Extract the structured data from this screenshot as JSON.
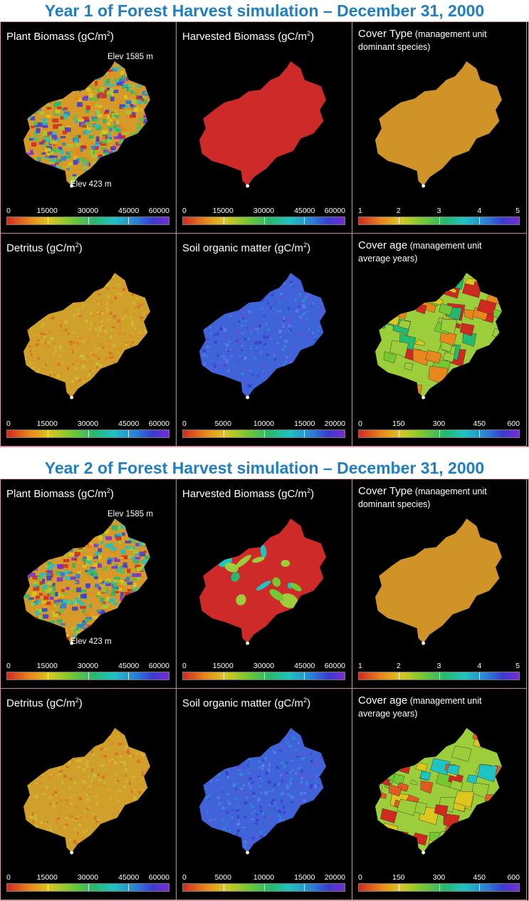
{
  "sections": [
    {
      "title": "Year 1 of Forest Harvest simulation – December 31, 2000",
      "panels": [
        {
          "title": "Plant Biomass (gC/m",
          "unit_exp": "2",
          "title_end": ")",
          "subtitle": "",
          "subtitle2": "",
          "elev_high": "Elev 1585 m",
          "elev_low": "Elev 423 m",
          "ticks": [
            "0",
            "15000",
            "30000",
            "45000",
            "60000"
          ],
          "map_style": "mixed",
          "map_color": "#d59a2a"
        },
        {
          "title": "Harvested Biomass (gC/m",
          "unit_exp": "2",
          "title_end": ")",
          "subtitle": "",
          "subtitle2": "",
          "elev_high": "",
          "elev_low": "",
          "ticks": [
            "0",
            "15000",
            "30000",
            "45000",
            "60000"
          ],
          "map_style": "solid",
          "map_color": "#cf2a2a"
        },
        {
          "title": "Cover Type",
          "unit_exp": "",
          "title_end": "",
          "subtitle": " (management unit",
          "subtitle2": "dominant species)",
          "elev_high": "",
          "elev_low": "",
          "ticks": [
            "1",
            "2",
            "3",
            "4",
            "5"
          ],
          "map_style": "solid",
          "map_color": "#cf9328"
        },
        {
          "title": "Detritus (gC/m",
          "unit_exp": "2",
          "title_end": ")",
          "subtitle": "",
          "subtitle2": "",
          "elev_high": "",
          "elev_low": "",
          "ticks": [
            "0",
            "15000",
            "30000",
            "45000",
            "60000"
          ],
          "map_style": "speckle",
          "map_color": "#cfa02a"
        },
        {
          "title": "Soil organic matter (gC/m",
          "unit_exp": "2",
          "title_end": ")",
          "subtitle": "",
          "subtitle2": "",
          "elev_high": "",
          "elev_low": "",
          "ticks": [
            "0",
            "5000",
            "10000",
            "15000",
            "20000"
          ],
          "map_style": "speckle",
          "map_color": "#3f63d8"
        },
        {
          "title": "Cover age",
          "unit_exp": "",
          "title_end": "",
          "subtitle": " (management unit",
          "subtitle2": "average years)",
          "elev_high": "",
          "elev_low": "",
          "ticks": [
            "0",
            "150",
            "300",
            "450",
            "600"
          ],
          "map_style": "patch",
          "map_color": "#9ccd3a"
        }
      ]
    },
    {
      "title": "Year 2 of Forest Harvest simulation – December 31, 2000",
      "panels": [
        {
          "title": "Plant Biomass (gC/m",
          "unit_exp": "2",
          "title_end": ")",
          "subtitle": "",
          "subtitle2": "",
          "elev_high": "Elev 1585 m",
          "elev_low": "Elev 423 m",
          "ticks": [
            "0",
            "15000",
            "30000",
            "45000",
            "60000"
          ],
          "map_style": "mixed",
          "map_color": "#d59a2a"
        },
        {
          "title": "Harvested Biomass (gC/m",
          "unit_exp": "2",
          "title_end": ")",
          "subtitle": "",
          "subtitle2": "",
          "elev_high": "",
          "elev_low": "",
          "ticks": [
            "0",
            "15000",
            "30000",
            "45000",
            "60000"
          ],
          "map_style": "harvest",
          "map_color": "#cf2a2a"
        },
        {
          "title": "Cover Type",
          "unit_exp": "",
          "title_end": "",
          "subtitle": " (management unit",
          "subtitle2": "dominant species)",
          "elev_high": "",
          "elev_low": "",
          "ticks": [
            "1",
            "2",
            "3",
            "4",
            "5"
          ],
          "map_style": "solid",
          "map_color": "#cf9328"
        },
        {
          "title": "Detritus (gC/m",
          "unit_exp": "2",
          "title_end": ")",
          "subtitle": "",
          "subtitle2": "",
          "elev_high": "",
          "elev_low": "",
          "ticks": [
            "0",
            "15000",
            "30000",
            "45000",
            "60000"
          ],
          "map_style": "speckle",
          "map_color": "#cfa02a"
        },
        {
          "title": "Soil organic matter (gC/m",
          "unit_exp": "2",
          "title_end": ")",
          "subtitle": "",
          "subtitle2": "",
          "elev_high": "",
          "elev_low": "",
          "ticks": [
            "0",
            "5000",
            "10000",
            "15000",
            "20000"
          ],
          "map_style": "speckle",
          "map_color": "#3f63d8"
        },
        {
          "title": "Cover age",
          "unit_exp": "",
          "title_end": "",
          "subtitle": " (management unit",
          "subtitle2": "average years)",
          "elev_high": "",
          "elev_low": "",
          "ticks": [
            "0",
            "150",
            "300",
            "450",
            "600"
          ],
          "map_style": "patch2",
          "map_color": "#9ccd3a"
        }
      ]
    }
  ],
  "chart_data": [
    {
      "type": "heatmap",
      "title": "Year 1 – Plant Biomass (gC/m2)",
      "colorbar_range": [
        0,
        60000
      ],
      "colorbar_ticks": [
        0,
        15000,
        30000,
        45000,
        60000
      ]
    },
    {
      "type": "heatmap",
      "title": "Year 1 – Harvested Biomass (gC/m2)",
      "colorbar_range": [
        0,
        60000
      ],
      "colorbar_ticks": [
        0,
        15000,
        30000,
        45000,
        60000
      ]
    },
    {
      "type": "heatmap",
      "title": "Year 1 – Cover Type",
      "colorbar_range": [
        1,
        5
      ],
      "colorbar_ticks": [
        1,
        2,
        3,
        4,
        5
      ]
    },
    {
      "type": "heatmap",
      "title": "Year 1 – Detritus (gC/m2)",
      "colorbar_range": [
        0,
        60000
      ],
      "colorbar_ticks": [
        0,
        15000,
        30000,
        45000,
        60000
      ]
    },
    {
      "type": "heatmap",
      "title": "Year 1 – Soil organic matter (gC/m2)",
      "colorbar_range": [
        0,
        20000
      ],
      "colorbar_ticks": [
        0,
        5000,
        10000,
        15000,
        20000
      ]
    },
    {
      "type": "heatmap",
      "title": "Year 1 – Cover age",
      "colorbar_range": [
        0,
        600
      ],
      "colorbar_ticks": [
        0,
        150,
        300,
        450,
        600
      ]
    },
    {
      "type": "heatmap",
      "title": "Year 2 – Plant Biomass (gC/m2)",
      "colorbar_range": [
        0,
        60000
      ],
      "colorbar_ticks": [
        0,
        15000,
        30000,
        45000,
        60000
      ]
    },
    {
      "type": "heatmap",
      "title": "Year 2 – Harvested Biomass (gC/m2)",
      "colorbar_range": [
        0,
        60000
      ],
      "colorbar_ticks": [
        0,
        15000,
        30000,
        45000,
        60000
      ]
    },
    {
      "type": "heatmap",
      "title": "Year 2 – Cover Type",
      "colorbar_range": [
        1,
        5
      ],
      "colorbar_ticks": [
        1,
        2,
        3,
        4,
        5
      ]
    },
    {
      "type": "heatmap",
      "title": "Year 2 – Detritus (gC/m2)",
      "colorbar_range": [
        0,
        60000
      ],
      "colorbar_ticks": [
        0,
        15000,
        30000,
        45000,
        60000
      ]
    },
    {
      "type": "heatmap",
      "title": "Year 2 – Soil organic matter (gC/m2)",
      "colorbar_range": [
        0,
        20000
      ],
      "colorbar_ticks": [
        0,
        5000,
        10000,
        15000,
        20000
      ]
    },
    {
      "type": "heatmap",
      "title": "Year 2 – Cover age",
      "colorbar_range": [
        0,
        600
      ],
      "colorbar_ticks": [
        0,
        150,
        300,
        450,
        600
      ]
    }
  ]
}
